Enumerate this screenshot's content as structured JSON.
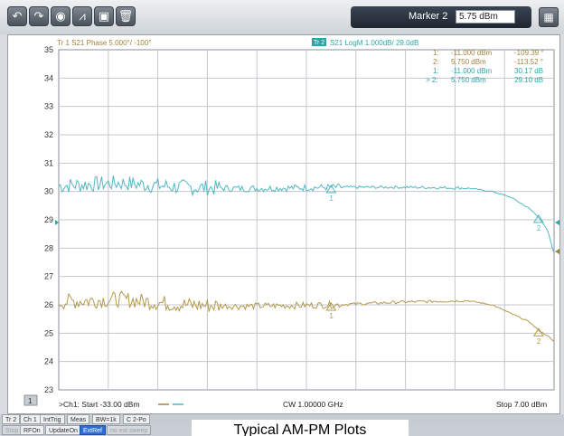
{
  "toolbar": {
    "buttons": [
      {
        "name": "undo-icon",
        "glyph": "↶"
      },
      {
        "name": "redo-icon",
        "glyph": "↷"
      },
      {
        "name": "camera-icon",
        "glyph": "◉"
      },
      {
        "name": "marker-search-icon",
        "glyph": "⩘"
      },
      {
        "name": "display-icon",
        "glyph": "▣"
      },
      {
        "name": "trash-icon",
        "glyph": "🗑"
      }
    ],
    "marker_label": "Marker 2",
    "marker_value": "5.75 dBm"
  },
  "plot": {
    "trace1_header": "Tr 1  S21 Phase 5.000°/ -100°",
    "trace2_tag": "Tr 2",
    "trace2_header": "S21 LogM 1.000dB/ 29.0dB",
    "marker_table": [
      {
        "id": "1:",
        "stim": "-11.000 dBm",
        "val": "-109.39 °"
      },
      {
        "id": "2:",
        "stim": "5.750 dBm",
        "val": "-113.52 °"
      },
      {
        "id": "1:",
        "stim": "-11.000 dBm",
        "val": "30.17 dB"
      },
      {
        "id": "> 2:",
        "stim": "5.750 dBm",
        "val": "29.10 dB"
      }
    ],
    "y_ticks": [
      "35",
      "34",
      "33",
      "32",
      "31",
      "30",
      "29",
      "28",
      "27",
      "26",
      "25",
      "24",
      "23"
    ],
    "footer_channel_box": "1",
    "footer_start": ">Ch1: Start  -33.00 dBm",
    "footer_center": "CW  1.00000 GHz",
    "footer_stop": "Stop  7.00 dBm",
    "marker_labels": {
      "m1": "1",
      "m2": "2"
    }
  },
  "colors": {
    "trace_cyan": "#4fb8c4",
    "trace_gold": "#b39a4c",
    "grid": "#9aa0a6",
    "text_teal": "#2ea6a6",
    "text_gold": "#a0843e"
  },
  "chart_data": {
    "type": "line",
    "ylim": [
      23,
      35
    ],
    "xlim": [
      -33,
      7
    ],
    "series": [
      {
        "color": "cyan",
        "x": [
          -33,
          -28,
          -23,
          -18,
          -11,
          -5,
          0,
          2,
          3.5,
          5,
          5.75,
          6.5,
          7
        ],
        "y": [
          30.2,
          30.3,
          30.15,
          30.1,
          30.15,
          30.15,
          30.12,
          30.0,
          29.8,
          29.4,
          29.1,
          28.6,
          27.8
        ]
      },
      {
        "color": "gold",
        "x": [
          -33,
          -28,
          -23,
          -18,
          -11,
          -5,
          0,
          2,
          3.5,
          5,
          5.75,
          6.5,
          7
        ],
        "y": [
          26.1,
          26.2,
          26.0,
          25.95,
          26.0,
          26.1,
          26.15,
          26.0,
          25.7,
          25.4,
          25.1,
          24.9,
          24.7
        ]
      }
    ]
  },
  "statusbar": {
    "items": [
      "Tr 2",
      "Ch 1",
      "IntTrig",
      "Meas",
      "BW=1k",
      "C 2-Po"
    ]
  },
  "softkeys": {
    "items": [
      "Stop",
      "RFOn",
      "UpdateOn",
      "ExtRef",
      "no ext.sweep"
    ]
  },
  "caption": "Typical AM-PM Plots"
}
